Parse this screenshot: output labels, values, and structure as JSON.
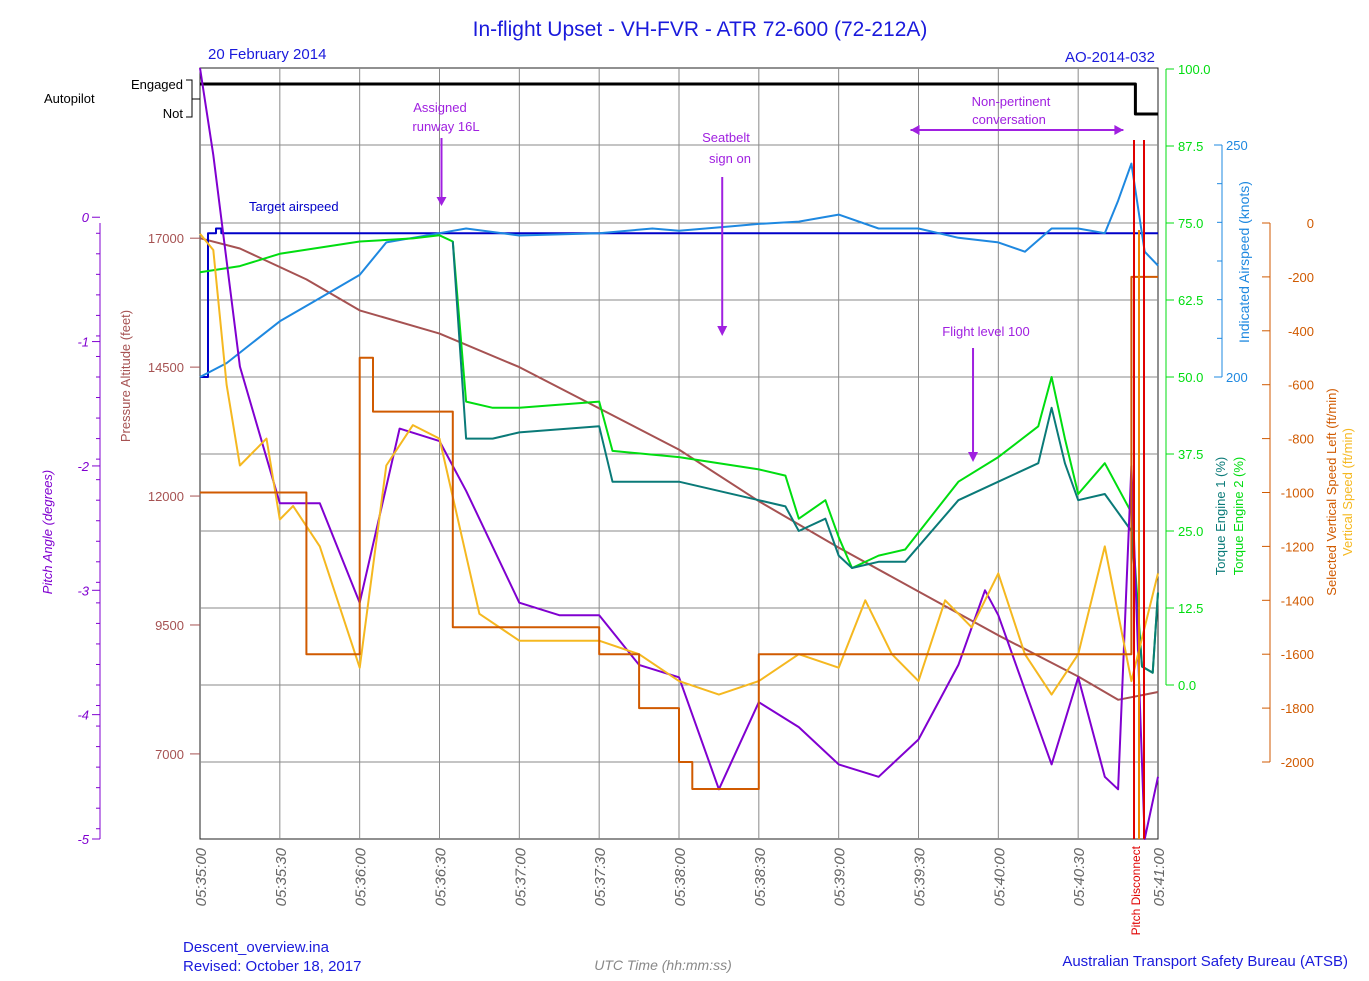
{
  "header": {
    "title": "In-flight Upset - VH-FVR -  ATR 72-600 (72-212A)",
    "date": "20 February 2014",
    "ref": "AO-2014-032"
  },
  "footer": {
    "file": "Descent_overview.ina",
    "revised": "Revised: October 18, 2017",
    "xlabel": "UTC Time (hh:mm:ss)",
    "org": "Australian Transport Safety Bureau (ATSB)"
  },
  "colors": {
    "title": "#1a1adc",
    "autopilot": "#000000",
    "altitude": "#a65252",
    "pitch": "#8000d0",
    "target_airspeed": "#0000c8",
    "ias": "#1e88e0",
    "torque1": "#0a7a78",
    "torque2": "#00dd10",
    "selected_vs": "#d05a00",
    "vertical_speed": "#f5b820",
    "annotation": "#a020e0",
    "red": "#e00000"
  },
  "chart_data": {
    "type": "line",
    "xlabel": "UTC Time (hh:mm:ss)",
    "xlim": [
      "05:35:00",
      "05:41:00"
    ],
    "x_ticks": [
      "05:35:00",
      "05:35:30",
      "05:36:00",
      "05:36:30",
      "05:37:00",
      "05:37:30",
      "05:38:00",
      "05:38:30",
      "05:39:00",
      "05:39:30",
      "05:40:00",
      "05:40:30",
      "05:41:00"
    ],
    "grid": true,
    "axes": {
      "autopilot": {
        "label": "Autopilot",
        "ticks": [
          "Engaged",
          "Not"
        ]
      },
      "altitude": {
        "label": "Pressure Altitude (feet)",
        "ticks": [
          "17000",
          "14500",
          "12000",
          "9500",
          "7000"
        ],
        "lim": [
          5350,
          20300
        ]
      },
      "pitch": {
        "label": "Pitch Angle (degrees)",
        "ticks": [
          "0",
          "-1",
          "-2",
          "-3",
          "-4",
          "-5"
        ],
        "lim": [
          -5,
          1.2
        ]
      },
      "torque": {
        "label1": "Torque Engine 1 (%)",
        "label2": "Torque Engine 2 (%)",
        "ticks": [
          "100.0",
          "87.5",
          "75.0",
          "62.5",
          "50.0",
          "37.5",
          "25.0",
          "12.5",
          "0.0"
        ],
        "lim": [
          0,
          100
        ]
      },
      "ias": {
        "label": "Indicated Airspeed (knots)",
        "ticks": [
          "250",
          "200"
        ],
        "lim": [
          200,
          250
        ]
      },
      "vs": {
        "label1": "Selected Vertical Speed Left (ft/min)",
        "label2": "Vertical Speed (ft/min)",
        "ticks": [
          "0",
          "-200",
          "-400",
          "-600",
          "-800",
          "-1000",
          "-1200",
          "-1400",
          "-1600",
          "-1800",
          "-2000"
        ],
        "lim": [
          -2000,
          0
        ]
      }
    },
    "series": [
      {
        "name": "Autopilot",
        "axis": "autopilot",
        "color": "#000000",
        "x": [
          "05:35:00",
          "05:40:51",
          "05:40:51.5",
          "05:41:00"
        ],
        "y": [
          1,
          1,
          0,
          0
        ],
        "step": true
      },
      {
        "name": "Pressure Altitude",
        "axis": "altitude",
        "color": "#a65252",
        "x": [
          "05:35:00",
          "05:35:15",
          "05:35:40",
          "05:36:00",
          "05:36:30",
          "05:37:00",
          "05:37:30",
          "05:38:00",
          "05:38:30",
          "05:39:00",
          "05:39:30",
          "05:40:00",
          "05:40:30",
          "05:40:45",
          "05:40:55",
          "05:41:00"
        ],
        "y": [
          17000,
          16800,
          16200,
          15600,
          15150,
          14500,
          13700,
          12900,
          11900,
          11000,
          10150,
          9300,
          8500,
          8050,
          8150,
          8200
        ]
      },
      {
        "name": "Target airspeed",
        "axis": "ias",
        "color": "#0000c8",
        "step": true,
        "x": [
          "05:35:00",
          "05:35:02",
          "05:35:03",
          "05:35:05",
          "05:35:06",
          "05:35:08",
          "05:41:00"
        ],
        "y": [
          200,
          200,
          231,
          231,
          232,
          231,
          231
        ]
      },
      {
        "name": "Indicated Airspeed",
        "axis": "ias",
        "color": "#1e88e0",
        "x": [
          "05:35:00",
          "05:35:10",
          "05:35:30",
          "05:35:45",
          "05:36:00",
          "05:36:10",
          "05:36:20",
          "05:36:30",
          "05:36:40",
          "05:37:00",
          "05:37:30",
          "05:37:50",
          "05:38:00",
          "05:38:20",
          "05:38:30",
          "05:38:45",
          "05:39:00",
          "05:39:15",
          "05:39:30",
          "05:39:45",
          "05:40:00",
          "05:40:10",
          "05:40:20",
          "05:40:30",
          "05:40:40",
          "05:40:45",
          "05:40:50",
          "05:40:55",
          "05:41:00"
        ],
        "y": [
          200,
          203,
          212,
          217,
          222,
          229,
          230,
          231,
          232,
          230.5,
          231,
          232,
          231.5,
          232.5,
          233,
          233.5,
          235,
          232,
          232,
          230,
          229,
          227,
          232,
          232,
          231,
          238,
          246,
          227,
          224
        ]
      },
      {
        "name": "Torque Engine 2",
        "axis": "torque",
        "color": "#00dd10",
        "x": [
          "05:35:00",
          "05:35:15",
          "05:35:30",
          "05:35:45",
          "05:36:00",
          "05:36:20",
          "05:36:30",
          "05:36:35",
          "05:36:40",
          "05:36:50",
          "05:37:00",
          "05:37:30",
          "05:37:35",
          "05:38:00",
          "05:38:30",
          "05:38:40",
          "05:38:45",
          "05:38:55",
          "05:39:00",
          "05:39:05",
          "05:39:15",
          "05:39:25",
          "05:39:45",
          "05:40:00",
          "05:40:15",
          "05:40:20",
          "05:40:25",
          "05:40:30",
          "05:40:40",
          "05:40:50",
          "05:40:54",
          "05:40:58",
          "05:41:00"
        ],
        "y": [
          67,
          68,
          70,
          71,
          72,
          72.5,
          73,
          72,
          46,
          45,
          45,
          46,
          38,
          37,
          35,
          34,
          27,
          30,
          24,
          19,
          21,
          22,
          33,
          37,
          42,
          50,
          40,
          31,
          36,
          28,
          3,
          2,
          15
        ]
      },
      {
        "name": "Torque Engine 1",
        "axis": "torque",
        "color": "#0a7a78",
        "x": [
          "05:36:35",
          "05:36:40",
          "05:36:50",
          "05:37:00",
          "05:37:30",
          "05:37:35",
          "05:38:00",
          "05:38:30",
          "05:38:40",
          "05:38:45",
          "05:38:55",
          "05:39:00",
          "05:39:05",
          "05:39:15",
          "05:39:25",
          "05:39:45",
          "05:40:00",
          "05:40:15",
          "05:40:20",
          "05:40:25",
          "05:40:30",
          "05:40:40",
          "05:40:50",
          "05:40:54",
          "05:40:58",
          "05:41:00"
        ],
        "y": [
          72,
          40,
          40,
          41,
          42,
          33,
          33,
          30,
          29,
          25,
          27,
          21,
          19,
          20,
          20,
          30,
          33,
          36,
          45,
          36,
          30,
          31,
          25,
          3,
          2,
          15
        ]
      },
      {
        "name": "Pitch Angle",
        "axis": "pitch",
        "color": "#8000d0",
        "x": [
          "05:35:00",
          "05:35:05",
          "05:35:15",
          "05:35:30",
          "05:35:45",
          "05:36:00",
          "05:36:15",
          "05:36:30",
          "05:36:40",
          "05:37:00",
          "05:37:15",
          "05:37:30",
          "05:37:45",
          "05:38:00",
          "05:38:15",
          "05:38:30",
          "05:38:45",
          "05:39:00",
          "05:39:15",
          "05:39:30",
          "05:39:45",
          "05:39:55",
          "05:40:00",
          "05:40:10",
          "05:40:20",
          "05:40:30",
          "05:40:40",
          "05:40:45",
          "05:40:50",
          "05:40:55",
          "05:41:00"
        ],
        "y": [
          1.2,
          0.5,
          -1.2,
          -2.3,
          -2.3,
          -3.1,
          -1.7,
          -1.8,
          -2.2,
          -3.1,
          -3.2,
          -3.2,
          -3.6,
          -3.7,
          -4.6,
          -3.9,
          -4.1,
          -4.4,
          -4.5,
          -4.2,
          -3.6,
          -3.0,
          -3.2,
          -3.8,
          -4.4,
          -3.7,
          -4.5,
          -4.6,
          -2.0,
          -5.0,
          -4.5
        ]
      },
      {
        "name": "Vertical Speed",
        "axis": "vs",
        "color": "#f5b820",
        "x": [
          "05:35:00",
          "05:35:05",
          "05:35:10",
          "05:35:15",
          "05:35:25",
          "05:35:30",
          "05:35:35",
          "05:35:45",
          "05:36:00",
          "05:36:10",
          "05:36:20",
          "05:36:30",
          "05:36:45",
          "05:37:00",
          "05:37:30",
          "05:37:45",
          "05:38:00",
          "05:38:15",
          "05:38:30",
          "05:38:45",
          "05:39:00",
          "05:39:10",
          "05:39:20",
          "05:39:30",
          "05:39:40",
          "05:39:50",
          "05:40:00",
          "05:40:10",
          "05:40:20",
          "05:40:30",
          "05:40:40",
          "05:40:50",
          "05:41:00"
        ],
        "y": [
          -40,
          -100,
          -600,
          -900,
          -800,
          -1100,
          -1050,
          -1200,
          -1650,
          -900,
          -750,
          -800,
          -1450,
          -1550,
          -1550,
          -1600,
          -1700,
          -1750,
          -1700,
          -1600,
          -1650,
          -1400,
          -1600,
          -1700,
          -1400,
          -1500,
          -1300,
          -1600,
          -1750,
          -1600,
          -1200,
          -1700,
          -1300
        ]
      },
      {
        "name": "Selected Vertical Speed Left",
        "axis": "vs",
        "color": "#d05a00",
        "step": true,
        "x": [
          "05:35:00",
          "05:35:40",
          "05:35:40",
          "05:35:50",
          "05:35:50",
          "05:36:00",
          "05:36:00",
          "05:36:05",
          "05:36:05",
          "05:36:15",
          "05:36:15",
          "05:36:35",
          "05:36:35",
          "05:37:30",
          "05:37:30",
          "05:37:45",
          "05:37:45",
          "05:38:00",
          "05:38:00",
          "05:38:05",
          "05:38:05",
          "05:38:30",
          "05:38:30",
          "05:40:50",
          "05:40:50",
          "05:41:00"
        ],
        "y": [
          -1000,
          -1000,
          -1600,
          -1600,
          -1600,
          -1600,
          -500,
          -500,
          -700,
          -700,
          -700,
          -700,
          -1500,
          -1500,
          -1600,
          -1600,
          -1800,
          -1800,
          -2000,
          -2000,
          -2100,
          -2100,
          -1600,
          -1600,
          -200,
          -200
        ]
      }
    ],
    "annotations": [
      {
        "text": [
          "Assigned",
          "runway 16L"
        ],
        "time": "05:36:30"
      },
      {
        "text": [
          "Seatbelt",
          "sign on"
        ],
        "time": "05:38:20"
      },
      {
        "text": [
          "Non-pertinent",
          "conversation"
        ],
        "time_start": "05:39:30",
        "time_end": "05:40:47"
      },
      {
        "text": [
          "Flight level 100"
        ],
        "time": "05:39:55"
      },
      {
        "text": [
          "Target airspeed"
        ]
      },
      {
        "text": [
          "Pitch Disconnect"
        ],
        "time": "05:40:53"
      }
    ]
  }
}
